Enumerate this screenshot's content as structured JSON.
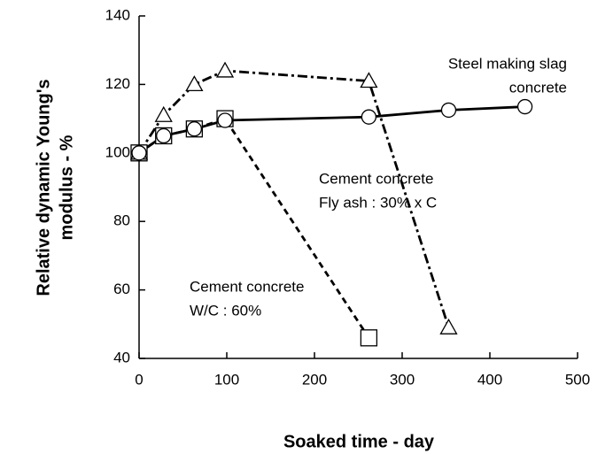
{
  "chart_data": {
    "type": "line",
    "xlabel": "Soaked time - day",
    "ylabel": [
      "Relative dynamic Young's",
      "modulus - %"
    ],
    "xlim": [
      0,
      500
    ],
    "xticks": [
      0,
      100,
      200,
      300,
      400,
      500
    ],
    "ylim": [
      40,
      140
    ],
    "yticks": [
      40,
      60,
      80,
      100,
      120,
      140
    ],
    "series": [
      {
        "marker": "circle",
        "dash": "solid",
        "color": "#000000",
        "x": [
          0,
          28,
          63,
          98,
          262,
          353,
          440
        ],
        "values": [
          100,
          105,
          107,
          109.5,
          110.5,
          112.5,
          113.5
        ]
      },
      {
        "marker": "triangle",
        "dash": "dash-dot",
        "color": "#000000",
        "x": [
          0,
          28,
          63,
          98,
          262,
          353
        ],
        "values": [
          100,
          111,
          120,
          124,
          121,
          49
        ]
      },
      {
        "marker": "square",
        "dash": "dashed",
        "color": "#000000",
        "x": [
          0,
          28,
          63,
          98,
          262
        ],
        "values": [
          100,
          105,
          107,
          110,
          46
        ]
      }
    ],
    "annotations": [
      [
        "Steel making slag",
        "concrete"
      ],
      [
        "Cement concrete",
        "Fly ash : 30% x C"
      ],
      [
        "Cement concrete",
        "W/C : 60%"
      ]
    ]
  }
}
